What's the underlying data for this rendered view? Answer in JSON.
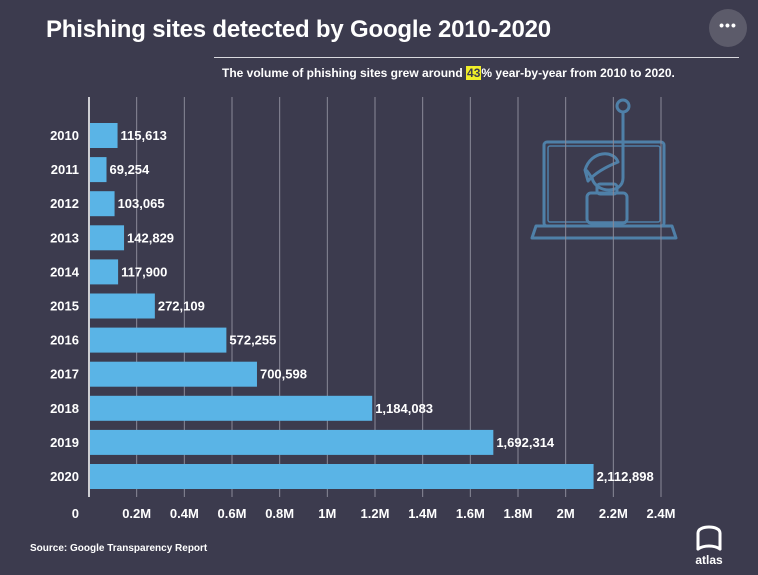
{
  "header": {
    "title": "Phishing sites detected by Google 2010-2020",
    "subtitle_before": "The volume of phishing sites grew around ",
    "subtitle_highlight": "43",
    "subtitle_after": "% year-by-year from 2010 to 2020.",
    "more_label": "•••"
  },
  "source": "Source: Google Transparency Report",
  "brand": {
    "wordmark": "atlas",
    "bar_color": "#5ab4e6",
    "background": "#3c3b4e",
    "highlight_color": "#f0ee29"
  },
  "chart_data": {
    "type": "bar",
    "orientation": "horizontal",
    "title": "Phishing sites detected by Google 2010-2020",
    "categories": [
      "2010",
      "2011",
      "2012",
      "2013",
      "2014",
      "2015",
      "2016",
      "2017",
      "2018",
      "2019",
      "2020"
    ],
    "values": [
      115613,
      69254,
      103065,
      142829,
      117900,
      272109,
      572255,
      700598,
      1184083,
      1692314,
      2112898
    ],
    "value_labels": [
      "115,613",
      "69,254",
      "103,065",
      "142,829",
      "117,900",
      "272,109",
      "572,255",
      "700,598",
      "1,184,083",
      "1,692,314",
      "2,112,898"
    ],
    "x_ticks": [
      {
        "value": 0,
        "label": "0"
      },
      {
        "value": 200000,
        "label": "0.2M"
      },
      {
        "value": 400000,
        "label": "0.4M"
      },
      {
        "value": 600000,
        "label": "0.6M"
      },
      {
        "value": 800000,
        "label": "0.8M"
      },
      {
        "value": 1000000,
        "label": "1M"
      },
      {
        "value": 1200000,
        "label": "1.2M"
      },
      {
        "value": 1400000,
        "label": "1.4M"
      },
      {
        "value": 1600000,
        "label": "1.6M"
      },
      {
        "value": 1800000,
        "label": "1.8M"
      },
      {
        "value": 2000000,
        "label": "2M"
      },
      {
        "value": 2200000,
        "label": "2.2M"
      },
      {
        "value": 2400000,
        "label": "2.4M"
      }
    ],
    "xlim": [
      0,
      2400000
    ],
    "grid": true,
    "legend": "none"
  }
}
